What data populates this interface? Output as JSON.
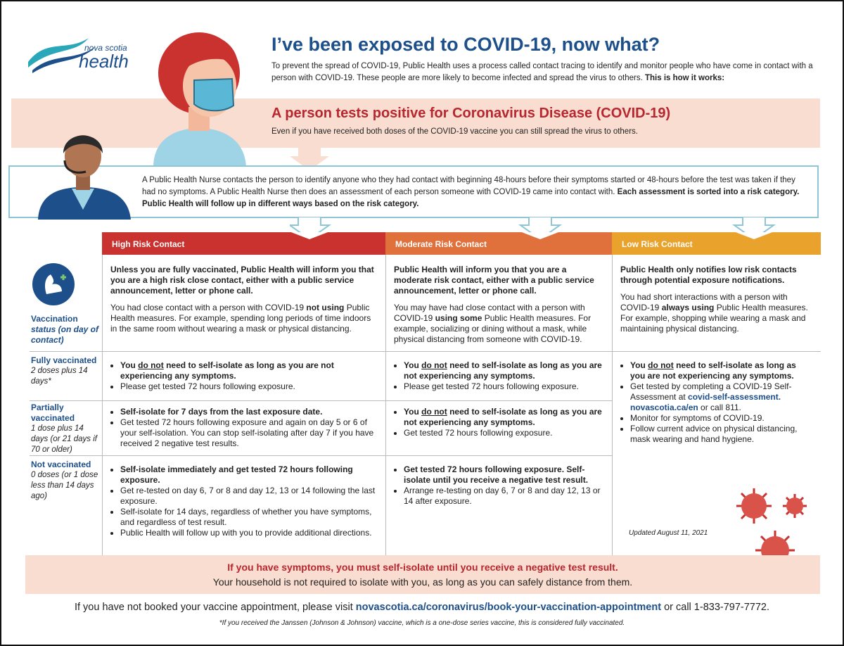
{
  "header": {
    "logo_top": "nova scotia",
    "logo_bottom": "health",
    "title": "I’ve been exposed to COVID-19, now what?",
    "intro": [
      "To prevent the spread of COVID-19, Public Health uses a process called contact tracing to identify and monitor people who have come in contact with a person with COVID-19. These people are more likely to become infected and spread the virus to others. ",
      "This is how it works:"
    ]
  },
  "positive": {
    "heading": "A person tests positive for Coronavirus Disease (COVID-19)",
    "text": "Even if you have received both doses of the COVID-19 vaccine you can still spread the virus to others."
  },
  "nurse": [
    "A Public Health Nurse contacts the person to identify anyone who they had contact with beginning 48-hours before their symptoms started or 48-hours before the test was taken if they had no symptoms. A Public Health Nurse then does an assessment of each person someone with COVID-19 came into contact with. ",
    "Each assessment is sorted into a risk category. Public Health will follow up in different ways based on the risk category."
  ],
  "columns": [
    {
      "header": "High Risk Contact",
      "lead": "Unless you are fully vaccinated, Public Health will inform you that you are a high risk close contact, either with a public service announcement, letter or phone call.",
      "body": [
        "You had close contact with a person with COVID-19 ",
        "not using",
        " Public Health measures. For example, spending long periods of time indoors in the same room without wearing a mask or physical distancing."
      ]
    },
    {
      "header": "Moderate Risk Contact",
      "lead": "Public Health will inform you that you are a moderate risk contact, either with a public service announcement, letter or phone call.",
      "body": [
        "You may have had close contact with a person with COVID-19 ",
        "using some",
        " Public Health measures. For example, socializing or dining without a mask, while physical distancing from someone with COVID-19."
      ]
    },
    {
      "header": "Low Risk Contact",
      "lead": "Public Health only notifies low risk contacts through potential exposure notifications.",
      "body": [
        "You had short interactions with a person with COVID-19 ",
        "always using",
        " Public Health measures. For example, shopping while wearing a mask and maintaining physical distancing."
      ]
    }
  ],
  "status_label": {
    "title": "Vaccination",
    "sub": "status (on day of contact)"
  },
  "rows": [
    {
      "title": "Fully vaccinated",
      "sub": "2 doses plus 14 days*",
      "high": [
        [
          "You ",
          "do not",
          " need to self-isolate as long as you are not experiencing any symptoms."
        ],
        [
          "Please get tested 72 hours following exposure."
        ]
      ],
      "moderate": [
        [
          "You ",
          "do not",
          " need to self-isolate as long as you are not experiencing any symptoms."
        ],
        [
          "Please get tested 72 hours following exposure."
        ]
      ]
    },
    {
      "title": "Partially vaccinated",
      "sub": "1 dose plus 14 days (or 21 days if 70 or older)",
      "high": [
        [
          "Self-isolate for 7 days from the last exposure date."
        ],
        [
          "Get tested 72 hours following exposure and again on day 5 or 6 of your self-isolation. You can stop self-isolating after day 7 if you have received 2 negative test results."
        ]
      ],
      "moderate": [
        [
          "You ",
          "do not",
          " need to self-isolate as long as you are not experiencing any symptoms."
        ],
        [
          "Get tested 72 hours following exposure."
        ]
      ]
    },
    {
      "title": "Not vaccinated",
      "sub": "0 doses (or 1 dose less than 14 days ago)",
      "high": [
        [
          "Self-isolate immediately and get tested 72 hours following exposure."
        ],
        [
          "Get re-tested on day 6, 7 or 8 and day 12, 13 or 14 following the last exposure."
        ],
        [
          "Self-isolate for 14 days, regardless of whether you have symptoms, and regardless of test result."
        ],
        [
          "Public Health will follow up with you to provide additional directions."
        ]
      ],
      "moderate": [
        [
          "Get tested 72 hours following exposure. Self-isolate until you receive a negative test result."
        ],
        [
          "Arrange re-testing on day 6, 7 or 8 and day 12, 13 or 14 after exposure."
        ]
      ]
    }
  ],
  "low_cell": [
    [
      "You ",
      "do not",
      " need to self-isolate as long as you are not experiencing any symptoms."
    ],
    [
      "Get tested by completing a COVID-19 Self-Assessment at ",
      "covid-self-assessment. novascotia.ca/en",
      " or call 811."
    ],
    [
      "Monitor for symptoms of COVID-19."
    ],
    [
      "Follow current advice on physical distancing, mask wearing and hand hygiene."
    ]
  ],
  "updated": "Updated August 11, 2021",
  "footer": {
    "symptoms": "If you have symptoms, you must self-isolate until you receive a negative test result.",
    "household": "Your household is not required to isolate with you, as long as you can safely distance from them.",
    "booking": [
      "If you have not booked your vaccine appointment, please visit ",
      "novascotia.ca/coronavirus/book-your-vaccination-appointment",
      " or call 1-833-797-7772."
    ],
    "note": "*If you received the Janssen (Johnson & Johnson) vaccine, which is a one-dose series vaccine, this is considered fully vaccinated."
  }
}
